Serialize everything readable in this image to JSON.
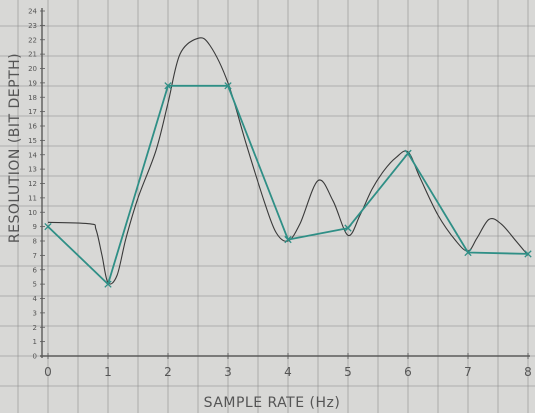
{
  "chart_data": {
    "type": "line",
    "title": "",
    "xlabel": "SAMPLE RATE (Hz)",
    "ylabel": "RESOLUTION (BIT DEPTH)",
    "xlim": [
      0,
      8
    ],
    "ylim": [
      0,
      24
    ],
    "x_ticks": [
      "0",
      "1",
      "2",
      "3",
      "4",
      "5",
      "6",
      "7",
      "8"
    ],
    "y_ticks": [
      "0",
      "1",
      "2",
      "3",
      "4",
      "5",
      "6",
      "7",
      "8",
      "9",
      "10",
      "11",
      "12",
      "13",
      "14",
      "15",
      "16",
      "17",
      "18",
      "19",
      "20",
      "21",
      "22",
      "23",
      "24"
    ],
    "grid": true,
    "series": [
      {
        "name": "",
        "kind": "analog curve",
        "x": [
          0,
          0.7,
          0.8,
          0.9,
          1,
          1.15,
          1.3,
          1.5,
          1.8,
          2,
          2.2,
          2.5,
          2.7,
          3,
          3.3,
          3.6,
          3.8,
          4,
          4.2,
          4.5,
          4.75,
          5,
          5.2,
          5.4,
          5.6,
          5.8,
          6,
          6.2,
          6.5,
          6.8,
          7,
          7.15,
          7.35,
          7.55,
          7.8,
          8
        ],
        "y": [
          9.3,
          9.2,
          8.8,
          7,
          5.1,
          5.6,
          8.2,
          11,
          14.3,
          17.6,
          21,
          22.1,
          21.6,
          19,
          14.8,
          10.8,
          8.6,
          8,
          9.2,
          12.2,
          10.8,
          8.4,
          9.8,
          11.6,
          12.9,
          13.8,
          14.2,
          12.4,
          9.8,
          8,
          7.3,
          8.2,
          9.5,
          9.2,
          8,
          7
        ]
      },
      {
        "name": "",
        "kind": "sampled",
        "x": [
          0,
          1,
          2,
          3,
          4,
          5,
          6,
          7,
          8
        ],
        "y": [
          9,
          5,
          18.8,
          18.8,
          8.1,
          8.9,
          14.1,
          7.2,
          7.1
        ]
      }
    ],
    "colors": {
      "analog": "#3a3a3a",
      "sampled": "#2f8f86",
      "grid": "#8e8e8e",
      "axis": "#5a5a5a",
      "paper": "#d8d8d6"
    }
  }
}
